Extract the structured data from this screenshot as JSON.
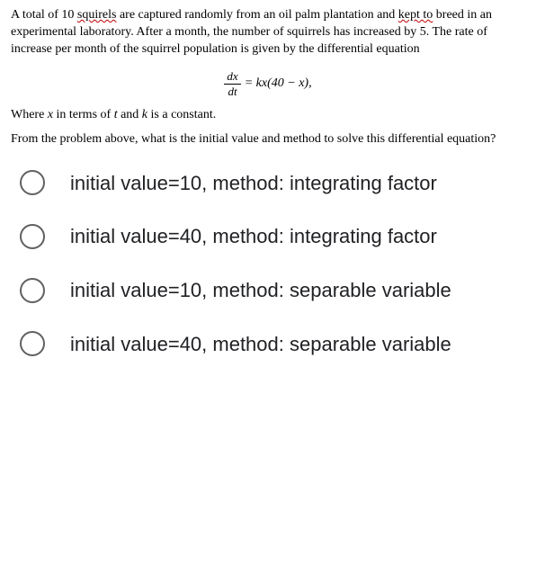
{
  "problem": {
    "text_before_sq": "A total of 10 ",
    "squirels": "squirels",
    "text_mid1": " are captured randomly from an oil palm plantation and ",
    "kept_to": "kept to",
    "text_mid2": " breed in an experimental laboratory. After a month, the number of squirrels has increased by 5. The rate of increase per month of the squirrel population is given by the differential equation",
    "equation_num": "dx",
    "equation_den": "dt",
    "equation_rhs": "= kx(40 − x),",
    "where_pre": "Where ",
    "where_x": "x",
    "where_mid": " in terms of ",
    "where_t": "t",
    "where_and": " and ",
    "where_k": "k",
    "where_end": " is a constant.",
    "question": "From the problem above, what is the initial value and method to solve this differential equation?"
  },
  "options": [
    {
      "label": "initial value=10, method: integrating factor"
    },
    {
      "label": "initial value=40, method: integrating factor"
    },
    {
      "label": "initial value=10, method: separable variable"
    },
    {
      "label": "initial value=40, method: separable variable"
    }
  ],
  "styling": {
    "body_bg": "#ffffff",
    "text_color": "#000000",
    "option_text_color": "#202124",
    "radio_border_color": "#616161",
    "underline_color": "#c00000",
    "problem_fontsize": 14,
    "option_fontsize": 22,
    "radio_size": 28,
    "problem_font": "Times New Roman",
    "option_font": "Arial"
  }
}
